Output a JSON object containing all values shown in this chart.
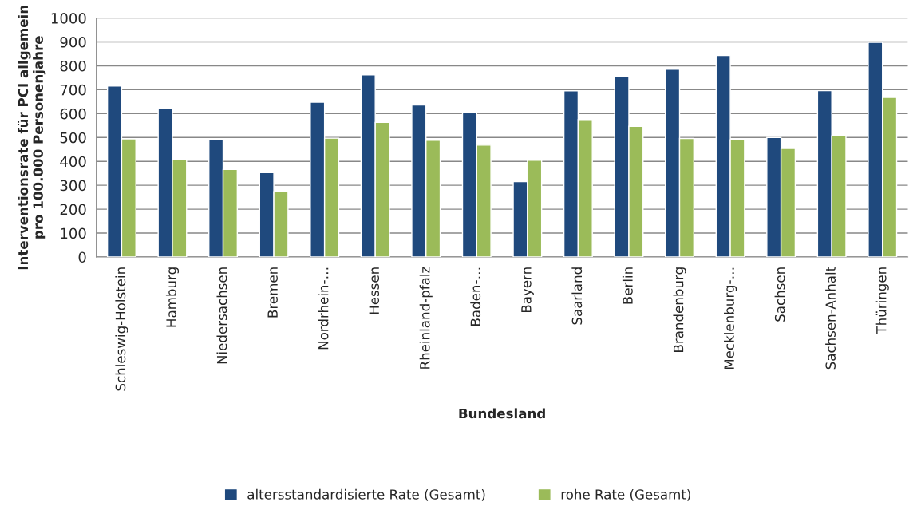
{
  "chart_data": {
    "type": "bar",
    "xlabel": "Bundesland",
    "ylabel": "Interventionsrate für PCI allgemein\npro 100.000 Personenjahre",
    "categories": [
      "Schleswig-Holstein",
      "Hamburg",
      "Niedersachsen",
      "Bremen",
      "Nordrhein-…",
      "Hessen",
      "Rheinland-pfalz",
      "Baden-…",
      "Bayern",
      "Saarland",
      "Berlin",
      "Brandenburg",
      "Mecklenburg-…",
      "Sachsen",
      "Sachsen-Anhalt",
      "Thüringen"
    ],
    "series": [
      {
        "name": "altersstandardisierte Rate (Gesamt)",
        "color": "#1f497d",
        "values": [
          715,
          620,
          493,
          353,
          648,
          762,
          636,
          604,
          315,
          695,
          755,
          785,
          843,
          500,
          696,
          898
        ]
      },
      {
        "name": "rohe Rate (Gesamt)",
        "color": "#9bbb59",
        "values": [
          494,
          410,
          366,
          273,
          497,
          563,
          488,
          468,
          405,
          575,
          547,
          496,
          490,
          454,
          507,
          668
        ]
      }
    ],
    "ylim": [
      0,
      1000
    ],
    "yticks": [
      0,
      100,
      200,
      300,
      400,
      500,
      600,
      700,
      800,
      900,
      1000
    ],
    "grid": "y",
    "legend": "bottom"
  }
}
